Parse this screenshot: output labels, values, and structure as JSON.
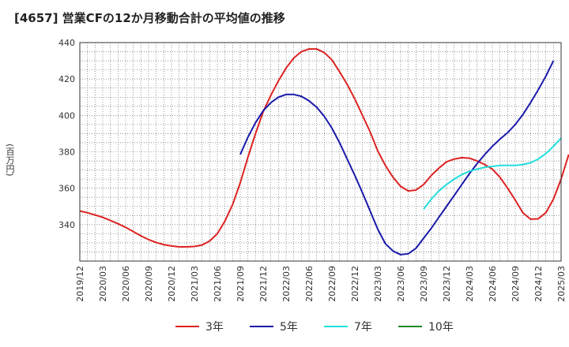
{
  "chart_data": {
    "type": "line",
    "title": "[4657]  営業CFの12か月移動合計の平均値の推移",
    "ylabel": "(百万円)",
    "xlabel": "",
    "ylim": [
      320,
      440
    ],
    "yticks": [
      340,
      360,
      380,
      400,
      420,
      440
    ],
    "xticks": [
      "2019/12",
      "2020/03",
      "2020/06",
      "2020/09",
      "2020/12",
      "2021/03",
      "2021/06",
      "2021/09",
      "2021/12",
      "2022/03",
      "2022/06",
      "2022/09",
      "2022/12",
      "2023/03",
      "2023/06",
      "2023/09",
      "2023/12",
      "2024/03",
      "2024/06",
      "2024/09",
      "2024/12",
      "2025/03"
    ],
    "grid": true,
    "legend_position": "bottom",
    "series": [
      {
        "name": "3年",
        "color": "#dd2222",
        "points": [
          [
            "2019/12",
            347.5
          ],
          [
            "2020/01",
            346.5
          ],
          [
            "2020/02",
            345.3
          ],
          [
            "2020/03",
            344
          ],
          [
            "2020/04",
            342.3
          ],
          [
            "2020/05",
            340.5
          ],
          [
            "2020/06",
            338.5
          ],
          [
            "2020/07",
            336.2
          ],
          [
            "2020/08",
            333.8
          ],
          [
            "2020/09",
            331.8
          ],
          [
            "2020/10",
            330.2
          ],
          [
            "2020/11",
            329
          ],
          [
            "2020/12",
            328.3
          ],
          [
            "2021/01",
            327.8
          ],
          [
            "2021/02",
            327.8
          ],
          [
            "2021/03",
            328
          ],
          [
            "2021/04",
            328.8
          ],
          [
            "2021/05",
            331
          ],
          [
            "2021/06",
            335
          ],
          [
            "2021/07",
            342
          ],
          [
            "2021/08",
            351
          ],
          [
            "2021/09",
            363
          ],
          [
            "2021/10",
            377
          ],
          [
            "2021/11",
            390
          ],
          [
            "2021/12",
            402
          ],
          [
            "2022/01",
            411
          ],
          [
            "2022/02",
            419
          ],
          [
            "2022/03",
            426
          ],
          [
            "2022/04",
            431.5
          ],
          [
            "2022/05",
            435
          ],
          [
            "2022/06",
            436.5
          ],
          [
            "2022/07",
            436.5
          ],
          [
            "2022/08",
            434.5
          ],
          [
            "2022/09",
            430.5
          ],
          [
            "2022/10",
            424
          ],
          [
            "2022/11",
            417
          ],
          [
            "2022/12",
            409
          ],
          [
            "2023/01",
            400
          ],
          [
            "2023/02",
            391
          ],
          [
            "2023/03",
            380.5
          ],
          [
            "2023/04",
            372.5
          ],
          [
            "2023/05",
            366
          ],
          [
            "2023/06",
            361
          ],
          [
            "2023/07",
            358.5
          ],
          [
            "2023/08",
            359
          ],
          [
            "2023/09",
            362
          ],
          [
            "2023/10",
            367
          ],
          [
            "2023/11",
            371
          ],
          [
            "2023/12",
            374.5
          ],
          [
            "2024/01",
            376
          ],
          [
            "2024/02",
            376.8
          ],
          [
            "2024/03",
            376.5
          ],
          [
            "2024/04",
            375
          ],
          [
            "2024/05",
            373
          ],
          [
            "2024/06",
            370.5
          ],
          [
            "2024/07",
            366
          ],
          [
            "2024/08",
            360
          ],
          [
            "2024/09",
            353.5
          ],
          [
            "2024/10",
            346.5
          ],
          [
            "2024/11",
            343
          ],
          [
            "2024/12",
            343.2
          ],
          [
            "2025/01",
            346.5
          ],
          [
            "2025/02",
            354
          ],
          [
            "2025/03",
            365
          ],
          [
            "2025/04",
            378.5
          ]
        ]
      },
      {
        "name": "5年",
        "color": "#1a1aaa",
        "points": [
          [
            "2021/09",
            378.5
          ],
          [
            "2021/10",
            388
          ],
          [
            "2021/11",
            396
          ],
          [
            "2021/12",
            402.5
          ],
          [
            "2022/01",
            407
          ],
          [
            "2022/02",
            410
          ],
          [
            "2022/03",
            411.5
          ],
          [
            "2022/04",
            411.5
          ],
          [
            "2022/05",
            410.5
          ],
          [
            "2022/06",
            408
          ],
          [
            "2022/07",
            404.5
          ],
          [
            "2022/08",
            399.5
          ],
          [
            "2022/09",
            393
          ],
          [
            "2022/10",
            385
          ],
          [
            "2022/11",
            376
          ],
          [
            "2022/12",
            367
          ],
          [
            "2023/01",
            357.5
          ],
          [
            "2023/02",
            347.5
          ],
          [
            "2023/03",
            337.5
          ],
          [
            "2023/04",
            329.5
          ],
          [
            "2023/05",
            325.5
          ],
          [
            "2023/06",
            323.5
          ],
          [
            "2023/07",
            324
          ],
          [
            "2023/08",
            327
          ],
          [
            "2023/09",
            332.5
          ],
          [
            "2023/10",
            338
          ],
          [
            "2023/11",
            344
          ],
          [
            "2023/12",
            350
          ],
          [
            "2024/01",
            356
          ],
          [
            "2024/02",
            362
          ],
          [
            "2024/03",
            368
          ],
          [
            "2024/04",
            373.5
          ],
          [
            "2024/05",
            378.5
          ],
          [
            "2024/06",
            383
          ],
          [
            "2024/07",
            387
          ],
          [
            "2024/08",
            390.5
          ],
          [
            "2024/09",
            395
          ],
          [
            "2024/10",
            400.5
          ],
          [
            "2024/11",
            407
          ],
          [
            "2024/12",
            414
          ],
          [
            "2025/01",
            421.5
          ],
          [
            "2025/02",
            430
          ]
        ]
      },
      {
        "name": "7年",
        "color": "#22dddd",
        "points": [
          [
            "2023/09",
            348.5
          ],
          [
            "2023/10",
            354
          ],
          [
            "2023/11",
            358.5
          ],
          [
            "2023/12",
            362
          ],
          [
            "2024/01",
            365
          ],
          [
            "2024/02",
            367.5
          ],
          [
            "2024/03",
            369.3
          ],
          [
            "2024/04",
            370.5
          ],
          [
            "2024/05",
            371.5
          ],
          [
            "2024/06",
            372
          ],
          [
            "2024/07",
            372.5
          ],
          [
            "2024/08",
            372.5
          ],
          [
            "2024/09",
            372.5
          ],
          [
            "2024/10",
            373
          ],
          [
            "2024/11",
            374
          ],
          [
            "2024/12",
            376
          ],
          [
            "2025/01",
            379
          ],
          [
            "2025/02",
            383
          ],
          [
            "2025/03",
            387.5
          ]
        ]
      },
      {
        "name": "10年",
        "color": "#228822",
        "points": []
      }
    ]
  }
}
